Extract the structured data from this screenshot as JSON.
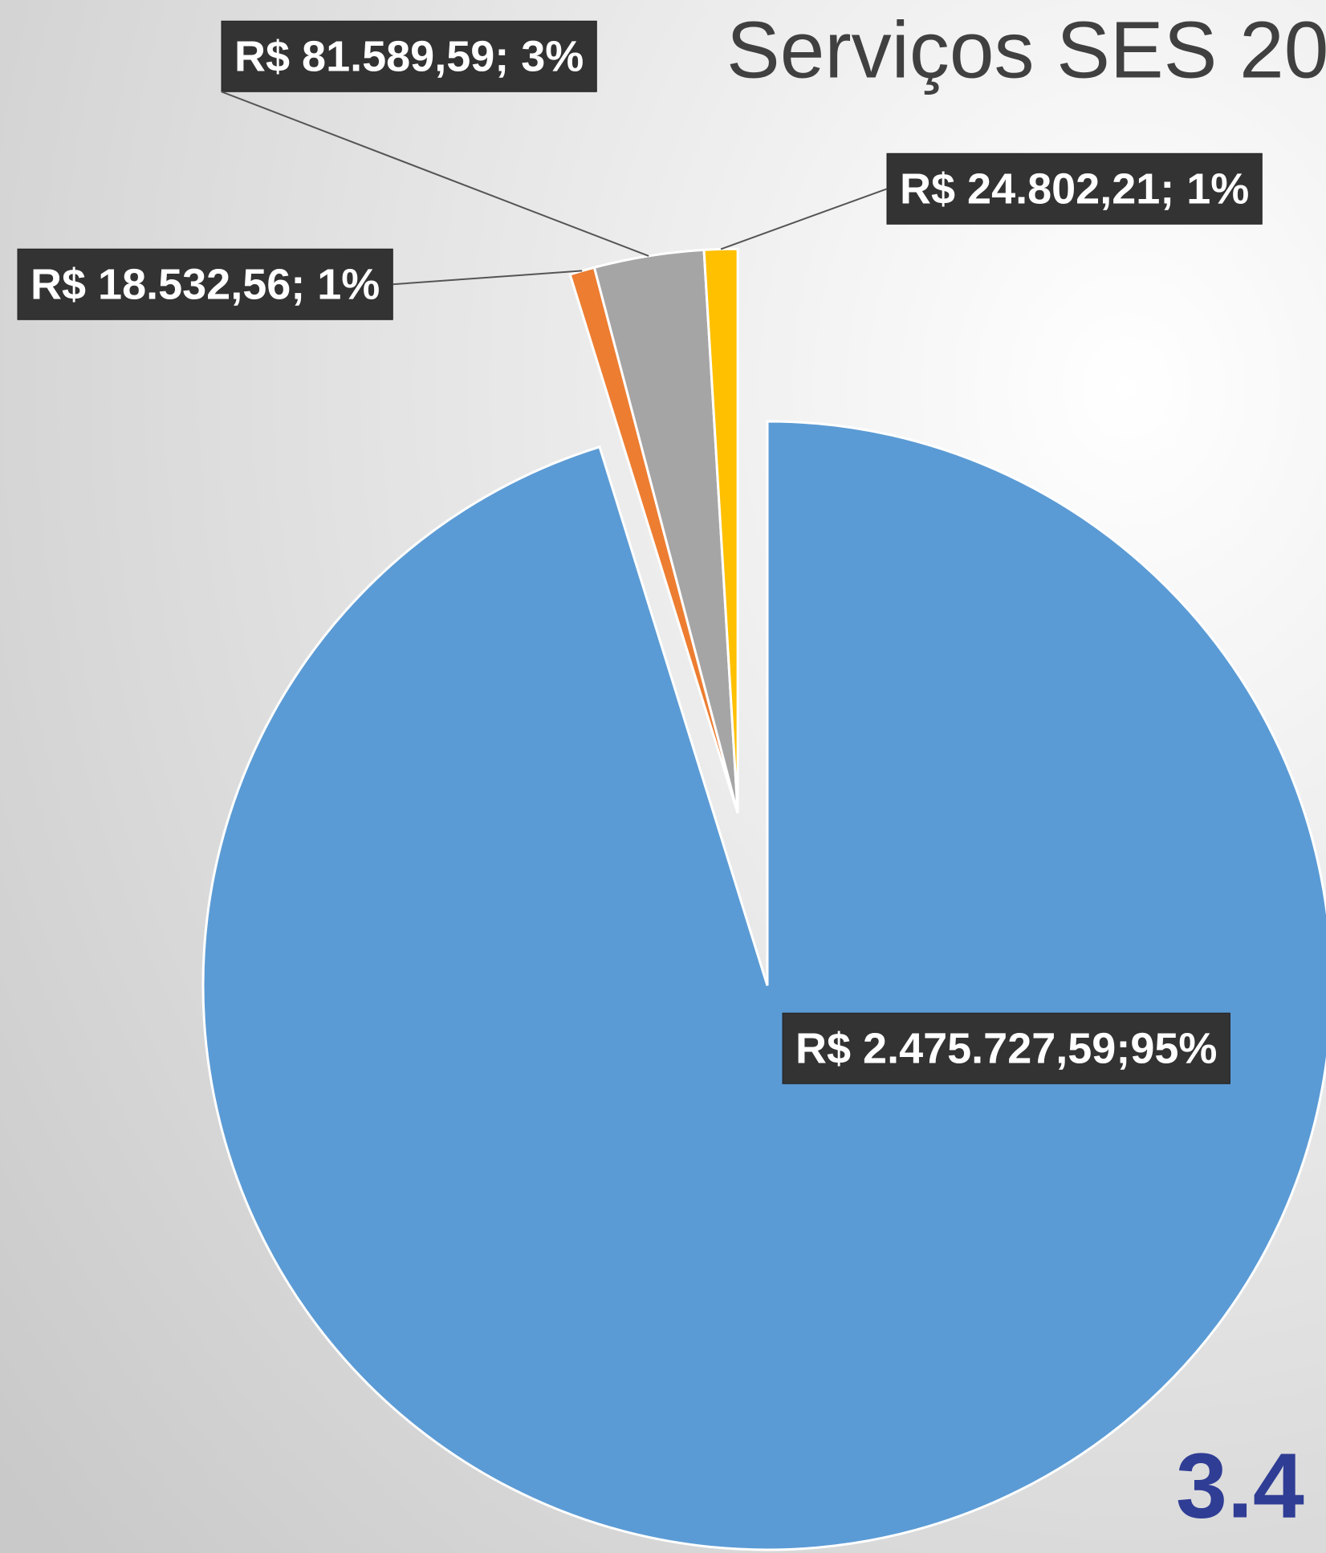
{
  "chart_data": {
    "type": "pie",
    "title": "Serviços SES 20",
    "categories": [
      null,
      null,
      null,
      null
    ],
    "values": [
      2475727.59,
      18532.56,
      81589.59,
      24802.21
    ],
    "value_labels": [
      "R$ 2.475.727,59;95%",
      "R$ 18.532,56; 1%",
      "R$ 81.589,59; 3%",
      "R$ 24.802,21; 1%"
    ],
    "colors": [
      "#5b9bd5",
      "#ed7d31",
      "#a5a5a5",
      "#ffc000"
    ],
    "annotation": "3.4"
  }
}
